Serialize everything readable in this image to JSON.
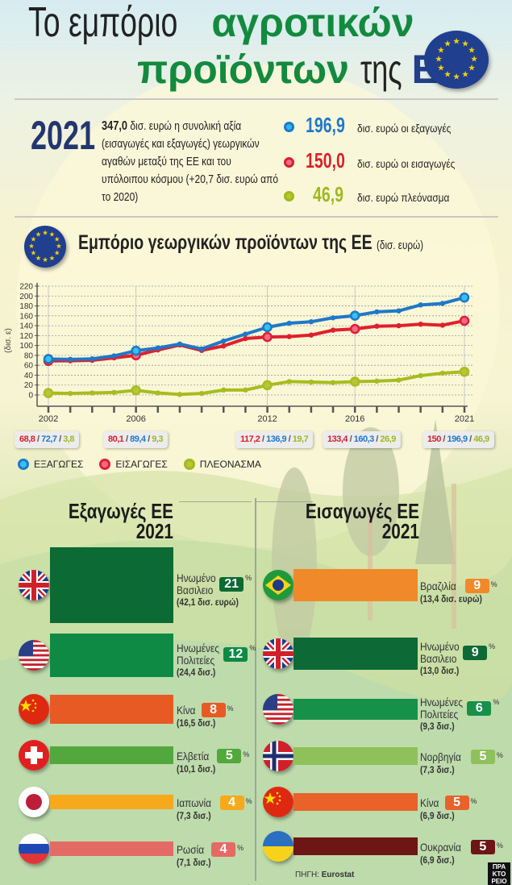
{
  "header": {
    "title_part1": "Το εμπόριο",
    "title_part2": "αγροτικών",
    "title_part3": "προϊόντων",
    "title_part4": "της",
    "title_part5": "ΕΕ"
  },
  "summary": {
    "year": "2021",
    "total_value": "347,0",
    "total_text": "δισ. ευρώ η συνολική αξία (εισαγωγές και εξαγωγές) γεωργικών αγαθών μεταξύ της ΕΕ και του υπόλοιπου κόσμου (+20,7 δισ. ευρώ από το 2020)",
    "kpis": [
      {
        "value": "196,9",
        "label": "δισ. ευρώ οι εξαγωγές",
        "color": "#1f78c8"
      },
      {
        "value": "150,0",
        "label": "δισ. ευρώ οι εισαγωγές",
        "color": "#d81f2a"
      },
      {
        "value": "46,9",
        "label": "δισ. ευρώ πλεόνασμα",
        "color": "#9fb91e"
      }
    ]
  },
  "chart_data": {
    "type": "line",
    "title": "Εμπόριο γεωργικών προϊόντων της ΕΕ",
    "title_unit": "(δισ. ευρώ)",
    "ylabel": "(δισ. ε)",
    "ylim": [
      0,
      220
    ],
    "yticks": [
      0,
      20,
      40,
      60,
      80,
      100,
      120,
      140,
      160,
      180,
      200,
      220
    ],
    "x": [
      2002,
      2003,
      2004,
      2005,
      2006,
      2007,
      2008,
      2009,
      2010,
      2011,
      2012,
      2013,
      2014,
      2015,
      2016,
      2017,
      2018,
      2019,
      2020,
      2021
    ],
    "xtick_labels": [
      "2002",
      "2006",
      "2012",
      "2016",
      "2021"
    ],
    "grid": true,
    "series": [
      {
        "name": "ΕΞΑΓΩΓΕΣ",
        "color": "#1f78c8",
        "values": [
          72.7,
          72,
          73,
          79,
          89.4,
          95,
          103,
          93,
          109,
          123,
          136.9,
          145,
          148,
          156,
          160.3,
          168,
          170,
          182,
          185,
          196.9
        ]
      },
      {
        "name": "ΕΙΣΑΓΩΓΕΣ",
        "color": "#e0202e",
        "values": [
          68.8,
          69,
          70,
          75,
          80.1,
          91,
          101,
          90,
          99,
          114,
          117.2,
          118,
          121,
          131,
          133.4,
          139,
          140,
          143,
          141,
          150
        ]
      },
      {
        "name": "ΠΛΕΟΝΑΣΜΑ",
        "color": "#a6bd1f",
        "values": [
          3.8,
          3,
          4,
          5,
          9.3,
          4,
          1,
          3,
          10,
          10,
          19.7,
          27,
          26,
          25,
          26.9,
          28,
          30,
          39,
          44,
          46.9
        ]
      }
    ],
    "annotations": [
      {
        "year": "2002",
        "imports": "68,8",
        "exports": "72,7",
        "surplus": "3,8"
      },
      {
        "year": "2006",
        "imports": "80,1",
        "exports": "89,4",
        "surplus": "9,3"
      },
      {
        "year": "2012",
        "imports": "117,2",
        "exports": "136,9",
        "surplus": "19,7"
      },
      {
        "year": "2016",
        "imports": "133,4",
        "exports": "160,3",
        "surplus": "26,9"
      },
      {
        "year": "2021",
        "imports": "150",
        "exports": "196,9",
        "surplus": "46,9"
      }
    ],
    "legend_placement": "bottom-left"
  },
  "exports": {
    "title": "Εξαγωγές ΕΕ",
    "year": "2021",
    "rows": [
      {
        "country": "Ηνωμένο Βασιλειο",
        "flag": "uk",
        "pct": 21,
        "value": "(42,1 δισ. ευρώ)",
        "color": "#0c6a34"
      },
      {
        "country": "Ηνωμένες Πολιτείες",
        "flag": "us",
        "pct": 12,
        "value": "(24,4 δισ.)",
        "color": "#0f8a45"
      },
      {
        "country": "Κίνα",
        "flag": "cn",
        "pct": 8,
        "value": "(16,5 δισ.)",
        "color": "#e85a24"
      },
      {
        "country": "Ελβετία",
        "flag": "ch",
        "pct": 5,
        "value": "(10,1 δισ.)",
        "color": "#52a83d"
      },
      {
        "country": "Ιαπωνία",
        "flag": "jp",
        "pct": 4,
        "value": "(7,3 δισ.)",
        "color": "#f6a91c"
      },
      {
        "country": "Ρωσία",
        "flag": "ru",
        "pct": 4,
        "value": "(7,1 δισ.)",
        "color": "#e46a66"
      }
    ]
  },
  "imports": {
    "title": "Εισαγωγές ΕΕ",
    "year": "2021",
    "rows": [
      {
        "country": "Βραζιλία",
        "flag": "br",
        "pct": 9,
        "value": "(13,4 δισ. ευρώ)",
        "color": "#f0892a"
      },
      {
        "country": "Ηνωμένο Βασιλειο",
        "flag": "uk",
        "pct": 9,
        "value": "(13,0 δισ.)",
        "color": "#0d6a36"
      },
      {
        "country": "Ηνωμένες Πολιτείες",
        "flag": "us",
        "pct": 6,
        "value": "(9,3 δισ.)",
        "color": "#17904a"
      },
      {
        "country": "Νορβηγία",
        "flag": "no",
        "pct": 5,
        "value": "(7,3 δισ.)",
        "color": "#8fc15a"
      },
      {
        "country": "Κίνα",
        "flag": "cn",
        "pct": 5,
        "value": "(6,9 δισ.)",
        "color": "#e8622a"
      },
      {
        "country": "Ουκρανία",
        "flag": "ua",
        "pct": 5,
        "value": "(6,9 δισ.)",
        "color": "#6e1515"
      }
    ]
  },
  "percent_sign": "%",
  "source": {
    "label": "ΠΗΓΗ:",
    "name": "Eurostat"
  },
  "logo": "ΠΡΑΚΤΟΡΕΙΟ"
}
